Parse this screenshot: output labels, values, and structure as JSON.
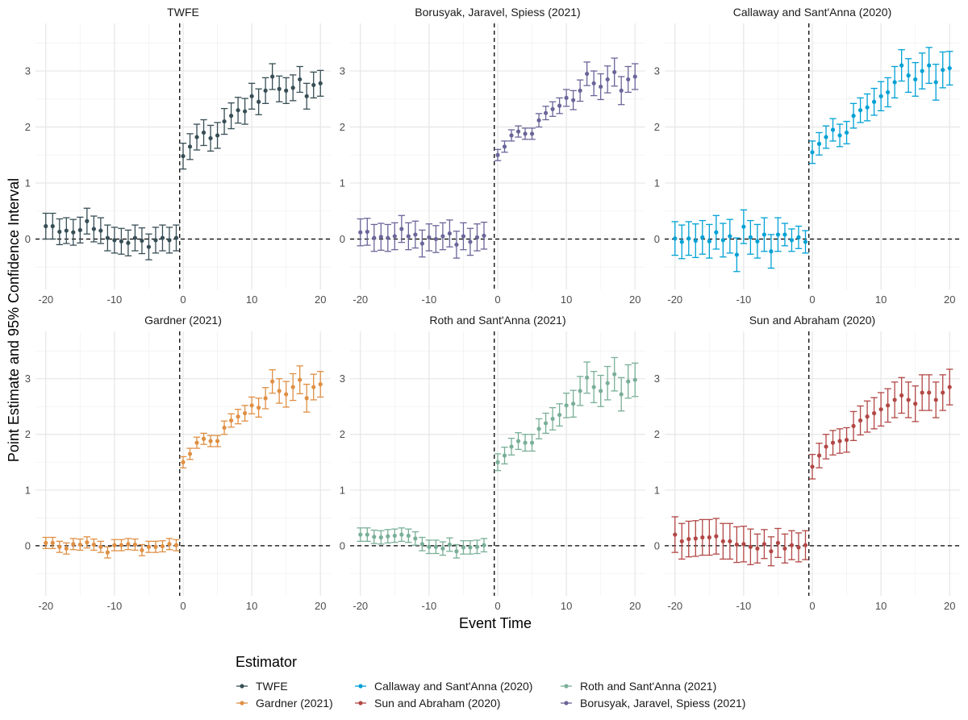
{
  "chart_data": {
    "type": "scatter",
    "subtype": "faceted point estimates with 95% confidence interval error bars",
    "xlabel": "Event Time",
    "ylabel": "Point Estimate and 95% Confidence Interval",
    "xlim": [
      -21.5,
      21.5
    ],
    "ylim": [
      -0.7,
      3.85
    ],
    "x_ticks": [
      -20,
      -10,
      0,
      10,
      20
    ],
    "x_tick_labels": [
      "-20",
      "-10",
      "0",
      "10",
      "20"
    ],
    "y_ticks": [
      0,
      1,
      2,
      3
    ],
    "y_tick_labels": [
      "0",
      "1",
      "2",
      "3"
    ],
    "reference_lines": {
      "vertical_x": -0.5,
      "horizontal_y": 0
    },
    "grid": true,
    "x": [
      -20,
      -19,
      -18,
      -17,
      -16,
      -15,
      -14,
      -13,
      -12,
      -11,
      -10,
      -9,
      -8,
      -7,
      -6,
      -5,
      -4,
      -3,
      -2,
      -1,
      0,
      1,
      2,
      3,
      4,
      5,
      6,
      7,
      8,
      9,
      10,
      11,
      12,
      13,
      14,
      15,
      16,
      17,
      18,
      19,
      20
    ],
    "legend": {
      "title": "Estimator",
      "position": "bottom",
      "entries": [
        {
          "label": "TWFE",
          "color": "#374e55"
        },
        {
          "label": "Gardner (2021)",
          "color": "#df8f44"
        },
        {
          "label": "Callaway and Sant'Anna (2020)",
          "color": "#00a1d5"
        },
        {
          "label": "Sun and Abraham (2020)",
          "color": "#b24745"
        },
        {
          "label": "Roth and Sant'Anna (2021)",
          "color": "#79af97"
        },
        {
          "label": "Borusyak, Jaravel, Spiess (2021)",
          "color": "#6a6599"
        }
      ]
    },
    "panels": [
      {
        "title": "TWFE",
        "color": "#374e55",
        "estimate": [
          0.23,
          0.23,
          0.13,
          0.15,
          0.12,
          0.16,
          0.32,
          0.18,
          0.15,
          0.02,
          -0.02,
          -0.04,
          -0.07,
          0.02,
          -0.03,
          -0.14,
          -0.02,
          0.02,
          -0.02,
          0.02,
          1.48,
          1.65,
          1.82,
          1.9,
          1.8,
          1.85,
          2.1,
          2.2,
          2.3,
          2.28,
          2.55,
          2.45,
          2.65,
          2.9,
          2.68,
          2.65,
          2.7,
          2.85,
          2.55,
          2.75,
          2.78
        ],
        "ci_half_width": [
          0.23,
          0.23,
          0.23,
          0.23,
          0.23,
          0.23,
          0.23,
          0.23,
          0.23,
          0.23,
          0.23,
          0.23,
          0.23,
          0.23,
          0.23,
          0.23,
          0.23,
          0.23,
          0.23,
          0.23,
          0.23,
          0.23,
          0.23,
          0.23,
          0.23,
          0.23,
          0.23,
          0.23,
          0.23,
          0.23,
          0.23,
          0.23,
          0.23,
          0.23,
          0.23,
          0.23,
          0.23,
          0.23,
          0.23,
          0.23,
          0.23
        ]
      },
      {
        "title": "Borusyak, Jaravel, Spiess (2021)",
        "color": "#6a6599",
        "estimate": [
          0.12,
          0.13,
          0.02,
          0.04,
          0.02,
          0.05,
          0.18,
          0.05,
          0.08,
          -0.08,
          0.03,
          0.0,
          0.05,
          0.1,
          -0.1,
          0.05,
          -0.05,
          0.03,
          0.06,
          null,
          1.5,
          1.65,
          1.85,
          1.92,
          1.88,
          1.88,
          2.12,
          2.25,
          2.32,
          2.38,
          2.52,
          2.48,
          2.65,
          2.95,
          2.78,
          2.72,
          2.85,
          2.98,
          2.65,
          2.85,
          2.9
        ],
        "ci_half_width": [
          0.24,
          0.24,
          0.24,
          0.24,
          0.24,
          0.24,
          0.24,
          0.24,
          0.24,
          0.24,
          0.24,
          0.24,
          0.24,
          0.24,
          0.24,
          0.24,
          0.24,
          0.24,
          0.24,
          0.24,
          0.1,
          0.1,
          0.1,
          0.1,
          0.1,
          0.1,
          0.12,
          0.12,
          0.13,
          0.14,
          0.15,
          0.17,
          0.19,
          0.21,
          0.22,
          0.23,
          0.24,
          0.25,
          0.25,
          0.23,
          0.23
        ]
      },
      {
        "title": "Callaway and Sant'Anna (2020)",
        "color": "#00a1d5",
        "estimate": [
          0.01,
          -0.05,
          0.01,
          -0.03,
          0.03,
          -0.04,
          0.12,
          -0.02,
          0.05,
          -0.28,
          0.22,
          0.03,
          -0.04,
          0.08,
          -0.22,
          0.08,
          0.08,
          -0.02,
          0.03,
          -0.05,
          1.55,
          1.7,
          1.82,
          1.95,
          1.85,
          1.9,
          2.2,
          2.3,
          2.35,
          2.45,
          2.55,
          2.62,
          2.8,
          3.1,
          2.92,
          2.85,
          3.0,
          3.1,
          2.8,
          3.02,
          3.05
        ],
        "ci_half_width": [
          0.3,
          0.3,
          0.3,
          0.3,
          0.3,
          0.3,
          0.3,
          0.3,
          0.3,
          0.3,
          0.3,
          0.3,
          0.3,
          0.3,
          0.3,
          0.3,
          0.2,
          0.2,
          0.2,
          0.2,
          0.2,
          0.2,
          0.2,
          0.2,
          0.2,
          0.2,
          0.22,
          0.22,
          0.24,
          0.24,
          0.26,
          0.26,
          0.28,
          0.28,
          0.3,
          0.3,
          0.32,
          0.32,
          0.32,
          0.32,
          0.3
        ]
      },
      {
        "title": "Gardner (2021)",
        "color": "#df8f44",
        "estimate": [
          0.05,
          0.05,
          -0.02,
          -0.05,
          0.03,
          0.02,
          0.06,
          0.02,
          -0.02,
          -0.12,
          0.01,
          0.01,
          0.03,
          0.02,
          -0.08,
          -0.02,
          -0.02,
          -0.01,
          0.03,
          0.01,
          1.5,
          1.65,
          1.85,
          1.92,
          1.88,
          1.88,
          2.12,
          2.25,
          2.32,
          2.38,
          2.52,
          2.48,
          2.65,
          2.95,
          2.78,
          2.72,
          2.85,
          2.98,
          2.65,
          2.85,
          2.9
        ],
        "ci_half_width": [
          0.1,
          0.1,
          0.1,
          0.1,
          0.1,
          0.1,
          0.1,
          0.1,
          0.1,
          0.1,
          0.1,
          0.1,
          0.1,
          0.1,
          0.1,
          0.1,
          0.1,
          0.1,
          0.1,
          0.1,
          0.1,
          0.1,
          0.1,
          0.1,
          0.1,
          0.1,
          0.12,
          0.12,
          0.13,
          0.14,
          0.15,
          0.17,
          0.19,
          0.21,
          0.22,
          0.23,
          0.24,
          0.25,
          0.25,
          0.23,
          0.23
        ]
      },
      {
        "title": "Roth and Sant'Anna (2021)",
        "color": "#79af97",
        "estimate": [
          0.2,
          0.2,
          0.16,
          0.15,
          0.17,
          0.18,
          0.2,
          0.18,
          0.13,
          0.03,
          -0.02,
          -0.02,
          -0.05,
          0.02,
          -0.1,
          -0.03,
          -0.03,
          -0.02,
          0.01,
          null,
          1.5,
          1.62,
          1.78,
          1.88,
          1.85,
          1.85,
          2.1,
          2.2,
          2.28,
          2.35,
          2.52,
          2.55,
          2.78,
          3.02,
          2.85,
          2.78,
          2.92,
          3.08,
          2.72,
          2.95,
          2.98
        ],
        "ci_half_width": [
          0.12,
          0.12,
          0.12,
          0.12,
          0.12,
          0.12,
          0.12,
          0.12,
          0.12,
          0.12,
          0.12,
          0.12,
          0.12,
          0.12,
          0.12,
          0.12,
          0.12,
          0.12,
          0.12,
          0.12,
          0.15,
          0.15,
          0.15,
          0.15,
          0.15,
          0.15,
          0.18,
          0.18,
          0.2,
          0.2,
          0.22,
          0.24,
          0.26,
          0.28,
          0.28,
          0.28,
          0.3,
          0.3,
          0.3,
          0.3,
          0.3
        ]
      },
      {
        "title": "Sun and Abraham (2020)",
        "color": "#b24745",
        "estimate": [
          0.2,
          0.08,
          0.12,
          0.13,
          0.15,
          0.15,
          0.17,
          0.08,
          0.08,
          0.02,
          0.03,
          -0.02,
          -0.05,
          0.03,
          -0.1,
          0.05,
          -0.05,
          0.01,
          -0.03,
          0.01,
          1.42,
          1.62,
          1.78,
          1.85,
          1.88,
          1.9,
          2.15,
          2.25,
          2.32,
          2.38,
          2.45,
          2.52,
          2.62,
          2.7,
          2.62,
          2.55,
          2.75,
          2.75,
          2.62,
          2.75,
          2.85
        ],
        "ci_half_width": [
          0.32,
          0.32,
          0.32,
          0.32,
          0.32,
          0.32,
          0.32,
          0.32,
          0.32,
          0.32,
          0.32,
          0.32,
          0.26,
          0.26,
          0.26,
          0.26,
          0.26,
          0.26,
          0.26,
          0.26,
          0.22,
          0.22,
          0.22,
          0.22,
          0.22,
          0.22,
          0.26,
          0.26,
          0.28,
          0.28,
          0.3,
          0.3,
          0.32,
          0.32,
          0.32,
          0.32,
          0.32,
          0.32,
          0.32,
          0.32,
          0.32
        ]
      }
    ]
  }
}
